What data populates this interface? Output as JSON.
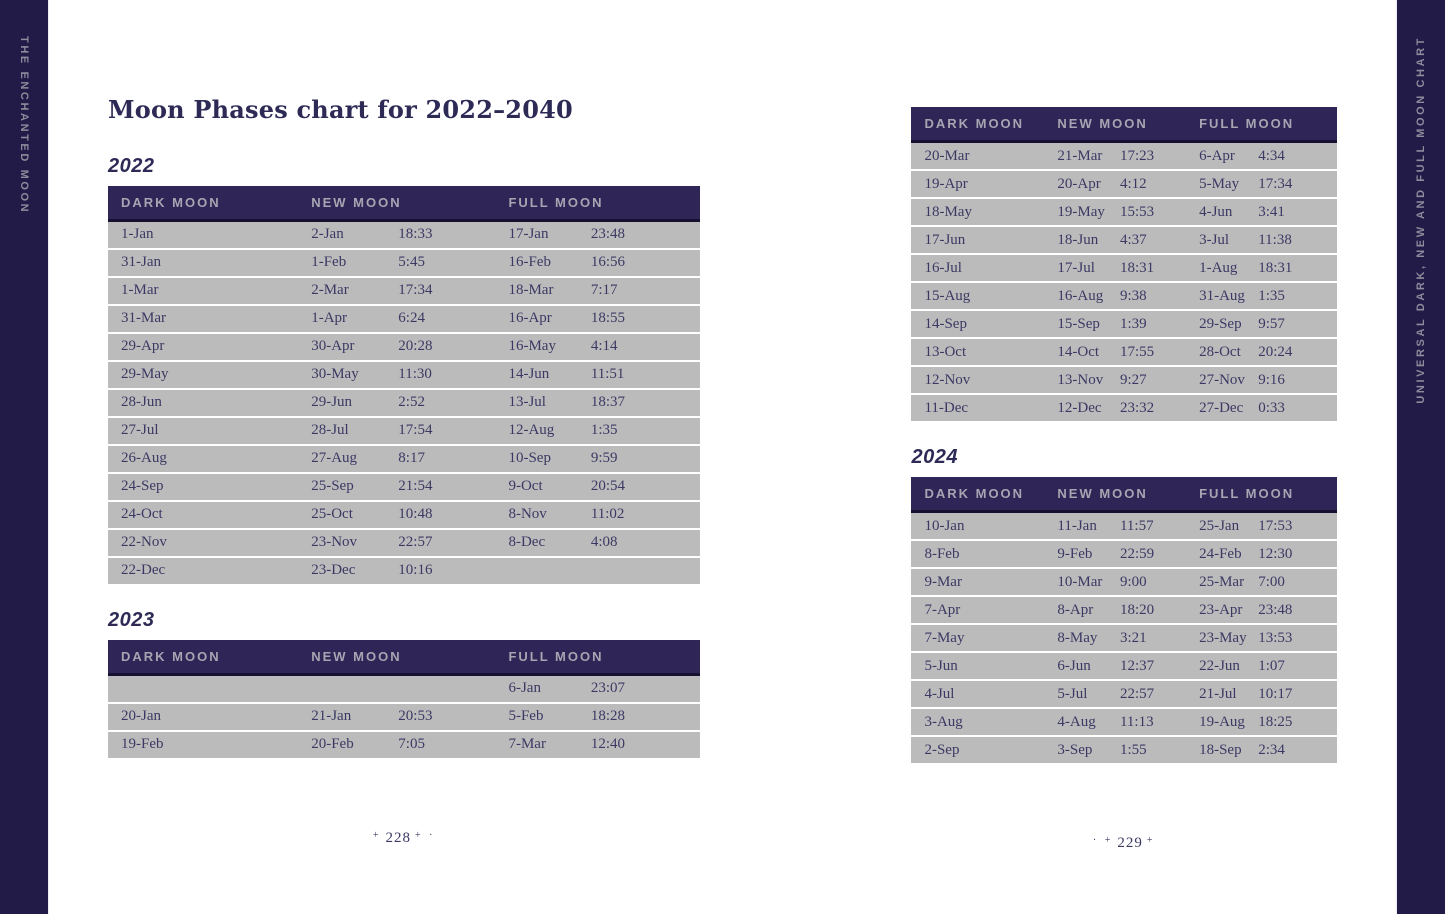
{
  "sidebar_left": {
    "label": "THE ENCHANTED MOON"
  },
  "sidebar_right": {
    "label": "UNIVERSAL DARK, NEW AND FULL MOON CHART"
  },
  "table_headers": [
    "DARK MOON",
    "NEW MOON",
    "FULL MOON"
  ],
  "left_page": {
    "title": "Moon Phases chart for 2022–2040",
    "sections": [
      {
        "year": "2022",
        "headers": [
          "DARK MOON",
          "NEW MOON",
          "FULL MOON"
        ],
        "rows": [
          [
            "1-Jan",
            "2-Jan",
            "18:33",
            "17-Jan",
            "23:48"
          ],
          [
            "31-Jan",
            "1-Feb",
            "5:45",
            "16-Feb",
            "16:56"
          ],
          [
            "1-Mar",
            "2-Mar",
            "17:34",
            "18-Mar",
            "7:17"
          ],
          [
            "31-Mar",
            "1-Apr",
            "6:24",
            "16-Apr",
            "18:55"
          ],
          [
            "29-Apr",
            "30-Apr",
            "20:28",
            "16-May",
            "4:14"
          ],
          [
            "29-May",
            "30-May",
            "11:30",
            "14-Jun",
            "11:51"
          ],
          [
            "28-Jun",
            "29-Jun",
            "2:52",
            "13-Jul",
            "18:37"
          ],
          [
            "27-Jul",
            "28-Jul",
            "17:54",
            "12-Aug",
            "1:35"
          ],
          [
            "26-Aug",
            "27-Aug",
            "8:17",
            "10-Sep",
            "9:59"
          ],
          [
            "24-Sep",
            "25-Sep",
            "21:54",
            "9-Oct",
            "20:54"
          ],
          [
            "24-Oct",
            "25-Oct",
            "10:48",
            "8-Nov",
            "11:02"
          ],
          [
            "22-Nov",
            "23-Nov",
            "22:57",
            "8-Dec",
            "4:08"
          ],
          [
            "22-Dec",
            "23-Dec",
            "10:16",
            "",
            ""
          ]
        ]
      },
      {
        "year": "2023",
        "headers": [
          "DARK MOON",
          "NEW MOON",
          "FULL MOON"
        ],
        "rows": [
          [
            "",
            "",
            "",
            "6-Jan",
            "23:07"
          ],
          [
            "20-Jan",
            "21-Jan",
            "20:53",
            "5-Feb",
            "18:28"
          ],
          [
            "19-Feb",
            "20-Feb",
            "7:05",
            "7-Mar",
            "12:40"
          ]
        ]
      }
    ],
    "page_number": {
      "prefix": "+",
      "value": "228",
      "suffix": "+ ·"
    }
  },
  "right_page": {
    "sections": [
      {
        "year": "",
        "headers": [
          "DARK MOON",
          "NEW MOON",
          "FULL MOON"
        ],
        "rows": [
          [
            "20-Mar",
            "21-Mar",
            "17:23",
            "6-Apr",
            "4:34"
          ],
          [
            "19-Apr",
            "20-Apr",
            "4:12",
            "5-May",
            "17:34"
          ],
          [
            "18-May",
            "19-May",
            "15:53",
            "4-Jun",
            "3:41"
          ],
          [
            "17-Jun",
            "18-Jun",
            "4:37",
            "3-Jul",
            "11:38"
          ],
          [
            "16-Jul",
            "17-Jul",
            "18:31",
            "1-Aug",
            "18:31"
          ],
          [
            "15-Aug",
            "16-Aug",
            "9:38",
            "31-Aug",
            "1:35"
          ],
          [
            "14-Sep",
            "15-Sep",
            "1:39",
            "29-Sep",
            "9:57"
          ],
          [
            "13-Oct",
            "14-Oct",
            "17:55",
            "28-Oct",
            "20:24"
          ],
          [
            "12-Nov",
            "13-Nov",
            "9:27",
            "27-Nov",
            "9:16"
          ],
          [
            "11-Dec",
            "12-Dec",
            "23:32",
            "27-Dec",
            "0:33"
          ]
        ]
      },
      {
        "year": "2024",
        "headers": [
          "DARK MOON",
          "NEW MOON",
          "FULL MOON"
        ],
        "rows": [
          [
            "10-Jan",
            "11-Jan",
            "11:57",
            "25-Jan",
            "17:53"
          ],
          [
            "8-Feb",
            "9-Feb",
            "22:59",
            "24-Feb",
            "12:30"
          ],
          [
            "9-Mar",
            "10-Mar",
            "9:00",
            "25-Mar",
            "7:00"
          ],
          [
            "7-Apr",
            "8-Apr",
            "18:20",
            "23-Apr",
            "23:48"
          ],
          [
            "7-May",
            "8-May",
            "3:21",
            "23-May",
            "13:53"
          ],
          [
            "5-Jun",
            "6-Jun",
            "12:37",
            "22-Jun",
            "1:07"
          ],
          [
            "4-Jul",
            "5-Jul",
            "22:57",
            "21-Jul",
            "10:17"
          ],
          [
            "3-Aug",
            "4-Aug",
            "11:13",
            "19-Aug",
            "18:25"
          ],
          [
            "2-Sep",
            "3-Sep",
            "1:55",
            "18-Sep",
            "2:34"
          ]
        ]
      }
    ],
    "page_number": {
      "prefix": "· +",
      "value": "229",
      "suffix": "+"
    }
  },
  "colors": {
    "navy": "#221A47",
    "header-bg": "#2F2557",
    "header-underline": "#171030",
    "row-bg": "#BCBBBC",
    "text": "#3B3963",
    "header-text": "#A7A5B1",
    "sidebar-text": "#8E8B9C",
    "title": "#2D2A56",
    "paper": "#FFFFFF"
  }
}
